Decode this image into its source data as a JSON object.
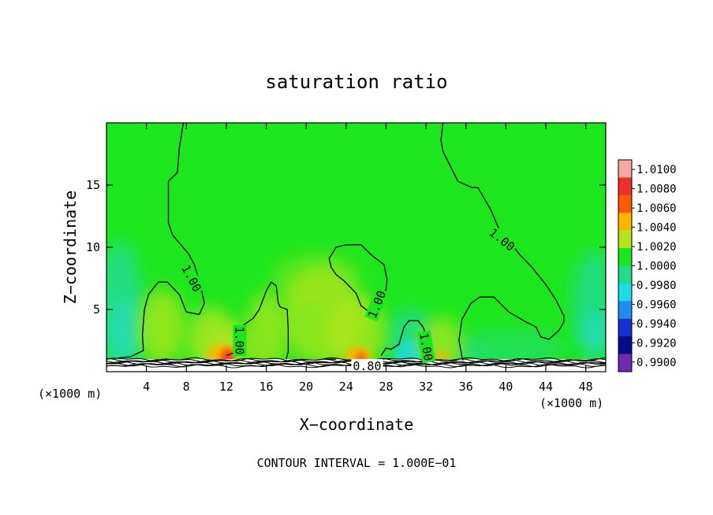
{
  "chart_data": {
    "type": "heatmap",
    "title": "saturation ratio",
    "xlabel": "X−coordinate",
    "ylabel": "Z−coordinate",
    "x_unit": "(×1000 m)",
    "x_unit_right": "(×1000 m)",
    "xlim": [
      0,
      50
    ],
    "ylim": [
      0,
      20
    ],
    "x_ticks": [
      4,
      8,
      12,
      16,
      20,
      24,
      28,
      32,
      36,
      40,
      44,
      48
    ],
    "y_ticks": [
      5,
      10,
      15
    ],
    "contour_interval_text": "CONTOUR INTERVAL = 1.000E−01",
    "contour_labels": [
      {
        "text": "1.00",
        "x": 8.5,
        "y": 7.5,
        "angle": 62
      },
      {
        "text": "1.00",
        "x": 13.3,
        "y": 2.5,
        "angle": 90
      },
      {
        "text": "1.00",
        "x": 27.1,
        "y": 5.4,
        "angle": -68
      },
      {
        "text": "1.00",
        "x": 32.0,
        "y": 2.0,
        "angle": 80
      },
      {
        "text": "1.00",
        "x": 39.6,
        "y": 10.6,
        "angle": 38
      },
      {
        "text": "0.80",
        "x": 26.1,
        "y": 0.45,
        "angle": 0
      }
    ],
    "colorbar": {
      "levels": [
        "1.0100",
        "1.0080",
        "1.0060",
        "1.0040",
        "1.0020",
        "1.0000",
        "0.9980",
        "0.9960",
        "0.9940",
        "0.9920",
        "0.9900"
      ],
      "colors": [
        "#f7a8a0",
        "#f03028",
        "#ff5a00",
        "#ffb400",
        "#b4e61e",
        "#1ee61e",
        "#22dc8c",
        "#1edce6",
        "#1e8cf0",
        "#1432d2",
        "#0a0a8c",
        "#6e28b4"
      ]
    },
    "contour_level_1_00": [
      [
        [
          7.7,
          20
        ],
        [
          7.3,
          18
        ],
        [
          7.1,
          16
        ],
        [
          6.2,
          15.3
        ],
        [
          6.2,
          12
        ],
        [
          6.6,
          11
        ],
        [
          8.2,
          9.5
        ],
        [
          8.8,
          8.6
        ],
        [
          9.4,
          7.0
        ],
        [
          9.8,
          5.5
        ],
        [
          9.3,
          4.6
        ],
        [
          8.0,
          4.8
        ],
        [
          7.3,
          6.2
        ],
        [
          6.1,
          7.2
        ],
        [
          5.2,
          7.2
        ],
        [
          4.2,
          6.2
        ],
        [
          3.8,
          5.0
        ],
        [
          3.6,
          3.0
        ],
        [
          3.7,
          1.7
        ],
        [
          2.4,
          1.2
        ],
        [
          1.2,
          1.1
        ]
      ],
      [
        [
          12.0,
          1.3
        ],
        [
          13.0,
          1.6
        ],
        [
          13.5,
          2.6
        ],
        [
          13.8,
          3.8
        ],
        [
          14.7,
          4.3
        ],
        [
          15.3,
          5.0
        ],
        [
          16.0,
          6.5
        ],
        [
          16.5,
          7.2
        ],
        [
          17.0,
          6.9
        ],
        [
          17.2,
          5.5
        ],
        [
          17.4,
          5.2
        ],
        [
          18.1,
          5.0
        ],
        [
          18.2,
          3.4
        ],
        [
          18.2,
          1.6
        ],
        [
          18.0,
          1.0
        ]
      ],
      [
        [
          22.0,
          1.0
        ],
        [
          23.0,
          1.0
        ]
      ],
      [
        [
          27.5,
          1.3
        ],
        [
          28.0,
          1.9
        ],
        [
          28.5,
          1.8
        ],
        [
          29.3,
          2.2
        ],
        [
          29.8,
          3.6
        ],
        [
          30.3,
          4.1
        ],
        [
          31.2,
          4.1
        ],
        [
          31.7,
          3.6
        ],
        [
          32.2,
          2.5
        ],
        [
          32.6,
          1.0
        ]
      ],
      [
        [
          22.3,
          9.1
        ],
        [
          23.0,
          10.0
        ],
        [
          24.0,
          10.2
        ],
        [
          25.5,
          10.2
        ],
        [
          26.5,
          9.4
        ],
        [
          27.8,
          8.6
        ],
        [
          28.1,
          7.4
        ],
        [
          28.0,
          6.6
        ],
        [
          27.4,
          5.6
        ],
        [
          26.5,
          4.7
        ],
        [
          25.5,
          5.3
        ],
        [
          25.0,
          6.3
        ],
        [
          23.8,
          7.3
        ],
        [
          23.0,
          7.8
        ],
        [
          22.5,
          8.4
        ],
        [
          22.3,
          9.1
        ]
      ],
      [
        [
          33.7,
          20
        ],
        [
          33.5,
          18.6
        ],
        [
          33.7,
          17.7
        ],
        [
          35.2,
          15.3
        ],
        [
          36.6,
          14.8
        ],
        [
          37.2,
          14.8
        ],
        [
          38.5,
          13.0
        ],
        [
          39.4,
          11.3
        ],
        [
          40.5,
          10.3
        ],
        [
          41.5,
          9.3
        ],
        [
          42.5,
          8.5
        ],
        [
          44.0,
          7.0
        ],
        [
          45.0,
          5.8
        ],
        [
          45.8,
          4.5
        ],
        [
          45.8,
          4.0
        ],
        [
          45.3,
          3.3
        ],
        [
          44.3,
          2.6
        ],
        [
          43.5,
          2.8
        ],
        [
          43.0,
          3.6
        ],
        [
          42.0,
          4.0
        ],
        [
          40.3,
          4.8
        ],
        [
          38.8,
          6.0
        ],
        [
          37.4,
          6.0
        ],
        [
          36.5,
          5.5
        ],
        [
          35.6,
          4.2
        ],
        [
          35.3,
          2.5
        ],
        [
          35.6,
          1.2
        ],
        [
          35.7,
          0.9
        ]
      ]
    ]
  }
}
